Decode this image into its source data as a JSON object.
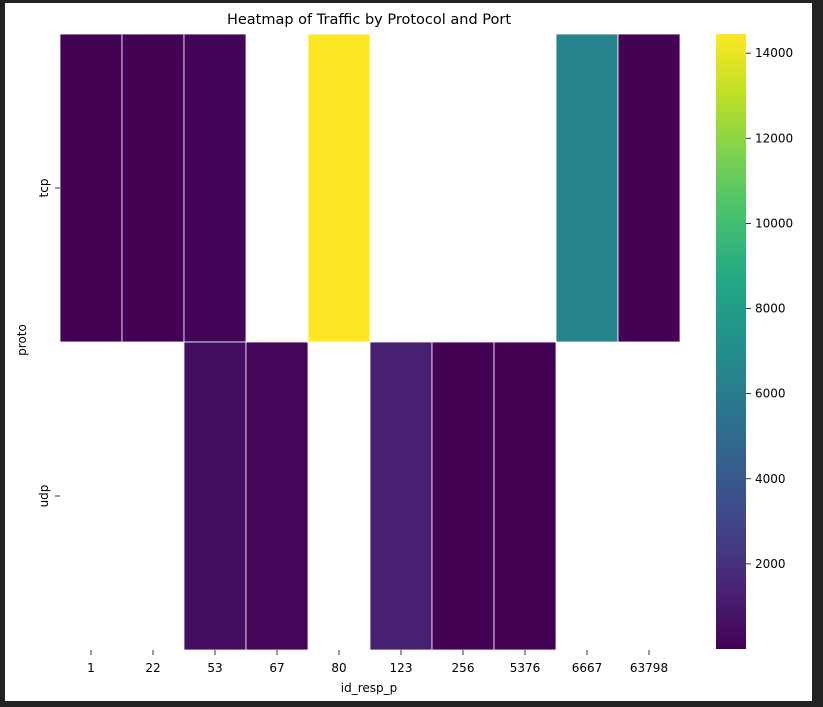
{
  "chart_data": {
    "type": "heatmap",
    "title": "Heatmap of Traffic by Protocol and Port",
    "xlabel": "id_resp_p",
    "ylabel": "proto",
    "x_categories": [
      "1",
      "22",
      "53",
      "67",
      "80",
      "123",
      "256",
      "5376",
      "6667",
      "63798"
    ],
    "y_categories": [
      "tcp",
      "udp"
    ],
    "values": [
      [
        30,
        40,
        120,
        null,
        14450,
        null,
        null,
        null,
        6500,
        50
      ],
      [
        null,
        null,
        500,
        200,
        null,
        1300,
        60,
        40,
        null,
        null
      ]
    ],
    "colormap": "viridis",
    "colorbar": {
      "vmin": 0,
      "vmax": 14450,
      "ticks": [
        2000,
        4000,
        6000,
        8000,
        10000,
        12000,
        14000
      ]
    },
    "missing_color": "#ffffff",
    "cell_border_color": "#ffffff"
  }
}
